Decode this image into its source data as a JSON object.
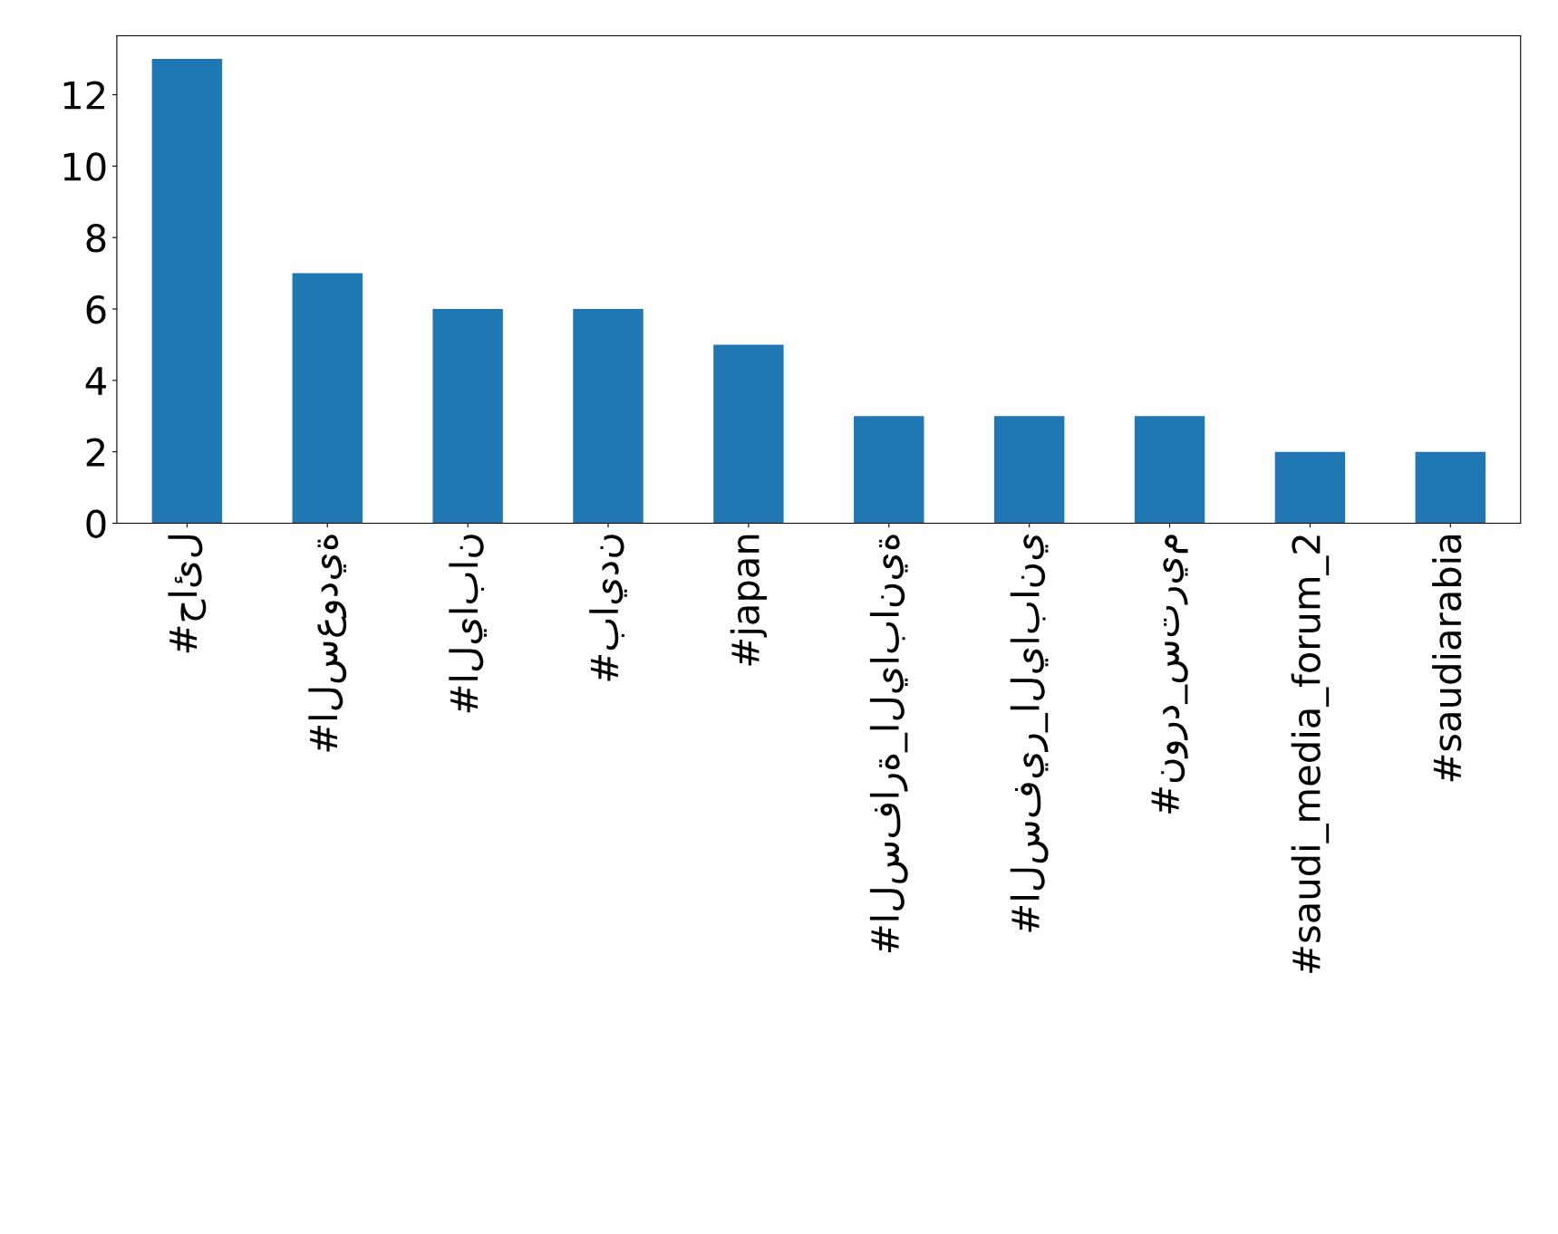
{
  "chart_data": {
    "type": "bar",
    "categories": [
      "#حائل",
      "#السعودية",
      "#اليابان",
      "#بايدن",
      "#japan",
      "#السفارة_اليابانية",
      "#السفير_الياباني",
      "#نورد_ستريم",
      "#saudi_media_forum_2",
      "#saudiarabia"
    ],
    "values": [
      13,
      7,
      6,
      6,
      5,
      3,
      3,
      3,
      2,
      2
    ],
    "color": "#1f77b4",
    "ylim": [
      0,
      13.65
    ],
    "yticks": [
      0,
      2,
      4,
      6,
      8,
      10,
      12
    ],
    "grid": false,
    "legend": false
  }
}
